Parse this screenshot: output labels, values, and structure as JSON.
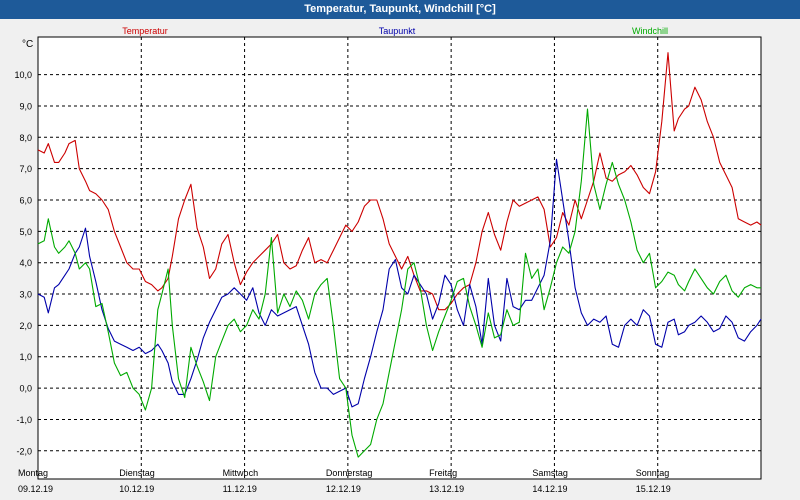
{
  "window": {
    "title": "Temperatur, Taupunkt, Windchill [°C]"
  },
  "chart_data": {
    "type": "line",
    "title": "Temperatur, Taupunkt, Windchill [°C]",
    "ylabel": "°C",
    "ylim": [
      -2.9,
      11.2
    ],
    "yticks": [
      -2.0,
      -1.0,
      0.0,
      1.0,
      2.0,
      3.0,
      4.0,
      5.0,
      6.0,
      7.0,
      8.0,
      9.0,
      10.0
    ],
    "ytick_labels": [
      "-2,0",
      "-1,0",
      "0,0",
      "1,0",
      "2,0",
      "3,0",
      "4,0",
      "5,0",
      "6,0",
      "7,0",
      "8,0",
      "9,0",
      "10,0"
    ],
    "xlim": [
      0,
      7
    ],
    "days": [
      {
        "weekday": "Montag",
        "date": "09.12.19"
      },
      {
        "weekday": "Dienstag",
        "date": "10.12.19"
      },
      {
        "weekday": "Mittwoch",
        "date": "11.12.19"
      },
      {
        "weekday": "Donnerstag",
        "date": "12.12.19"
      },
      {
        "weekday": "Freitag",
        "date": "13.12.19"
      },
      {
        "weekday": "Samstag",
        "date": "14.12.19"
      },
      {
        "weekday": "Sonntag",
        "date": "15.12.19"
      }
    ],
    "grid": true,
    "colors": {
      "axis": "#000000",
      "grid": "#000000",
      "background": "#ffffff"
    },
    "series": [
      {
        "name": "Temperatur",
        "color": "#cc0000",
        "x": [
          0.0,
          0.06,
          0.1,
          0.16,
          0.2,
          0.26,
          0.3,
          0.36,
          0.4,
          0.46,
          0.5,
          0.56,
          0.62,
          0.68,
          0.74,
          0.8,
          0.86,
          0.92,
          0.98,
          1.04,
          1.1,
          1.16,
          1.2,
          1.26,
          1.3,
          1.36,
          1.42,
          1.48,
          1.54,
          1.6,
          1.66,
          1.72,
          1.78,
          1.84,
          1.9,
          1.96,
          2.02,
          2.08,
          2.14,
          2.2,
          2.26,
          2.32,
          2.38,
          2.44,
          2.5,
          2.56,
          2.62,
          2.68,
          2.74,
          2.8,
          2.86,
          2.92,
          2.98,
          3.04,
          3.1,
          3.16,
          3.22,
          3.28,
          3.34,
          3.4,
          3.46,
          3.52,
          3.58,
          3.64,
          3.7,
          3.76,
          3.82,
          3.88,
          3.94,
          4.0,
          4.06,
          4.12,
          4.18,
          4.24,
          4.3,
          4.36,
          4.42,
          4.48,
          4.54,
          4.6,
          4.66,
          4.72,
          4.78,
          4.84,
          4.9,
          4.96,
          5.02,
          5.08,
          5.14,
          5.2,
          5.26,
          5.32,
          5.38,
          5.44,
          5.5,
          5.56,
          5.62,
          5.68,
          5.74,
          5.8,
          5.86,
          5.92,
          5.98,
          6.04,
          6.1,
          6.16,
          6.2,
          6.26,
          6.3,
          6.36,
          6.42,
          6.48,
          6.54,
          6.6,
          6.66,
          6.72,
          6.78,
          6.84,
          6.9,
          6.96,
          7.0
        ],
        "values": [
          7.6,
          7.5,
          7.8,
          7.2,
          7.2,
          7.5,
          7.8,
          7.9,
          7.0,
          6.6,
          6.3,
          6.2,
          6.0,
          5.7,
          5.0,
          4.5,
          4.0,
          3.8,
          3.8,
          3.4,
          3.3,
          3.1,
          3.2,
          3.5,
          4.2,
          5.4,
          6.0,
          6.5,
          5.1,
          4.5,
          3.5,
          3.8,
          4.6,
          4.9,
          4.0,
          3.3,
          3.7,
          4.0,
          4.2,
          4.4,
          4.6,
          4.9,
          4.0,
          3.8,
          3.9,
          4.4,
          4.8,
          4.0,
          4.1,
          4.0,
          4.4,
          4.8,
          5.2,
          5.0,
          5.3,
          5.8,
          6.0,
          6.0,
          5.4,
          4.6,
          4.2,
          3.8,
          4.2,
          3.6,
          3.1,
          3.1,
          3.0,
          2.5,
          2.5,
          2.7,
          3.0,
          3.2,
          3.3,
          4.0,
          5.0,
          5.6,
          4.9,
          4.4,
          5.3,
          6.0,
          5.8,
          5.9,
          6.0,
          6.1,
          5.7,
          4.5,
          4.8,
          5.6,
          5.2,
          6.0,
          5.4,
          6.0,
          6.6,
          7.5,
          6.7,
          6.6,
          6.8,
          6.9,
          7.1,
          6.8,
          6.4,
          6.2,
          6.9,
          8.5,
          10.7,
          8.2,
          8.6,
          8.9,
          9.0,
          9.6,
          9.2,
          8.5,
          8.0,
          7.2,
          6.8,
          6.4,
          5.4,
          5.3,
          5.2,
          5.3,
          5.2
        ]
      },
      {
        "name": "Taupunkt",
        "color": "#0000aa",
        "x": [
          0.0,
          0.06,
          0.1,
          0.16,
          0.2,
          0.26,
          0.3,
          0.36,
          0.4,
          0.46,
          0.5,
          0.56,
          0.62,
          0.68,
          0.74,
          0.8,
          0.86,
          0.92,
          0.98,
          1.04,
          1.1,
          1.16,
          1.2,
          1.26,
          1.3,
          1.36,
          1.42,
          1.48,
          1.54,
          1.6,
          1.66,
          1.72,
          1.78,
          1.84,
          1.9,
          1.96,
          2.02,
          2.08,
          2.14,
          2.2,
          2.26,
          2.32,
          2.38,
          2.44,
          2.5,
          2.56,
          2.62,
          2.68,
          2.74,
          2.8,
          2.86,
          2.92,
          2.98,
          3.04,
          3.1,
          3.16,
          3.22,
          3.28,
          3.34,
          3.4,
          3.46,
          3.52,
          3.58,
          3.64,
          3.7,
          3.76,
          3.82,
          3.88,
          3.94,
          4.0,
          4.06,
          4.12,
          4.18,
          4.24,
          4.3,
          4.36,
          4.42,
          4.48,
          4.54,
          4.6,
          4.66,
          4.72,
          4.78,
          4.84,
          4.9,
          4.96,
          5.02,
          5.08,
          5.14,
          5.2,
          5.26,
          5.32,
          5.38,
          5.44,
          5.5,
          5.56,
          5.62,
          5.68,
          5.74,
          5.8,
          5.86,
          5.92,
          5.98,
          6.04,
          6.1,
          6.16,
          6.2,
          6.26,
          6.3,
          6.36,
          6.42,
          6.48,
          6.54,
          6.6,
          6.66,
          6.72,
          6.78,
          6.84,
          6.9,
          6.96,
          7.0
        ],
        "values": [
          3.0,
          2.9,
          2.4,
          3.2,
          3.3,
          3.6,
          3.8,
          4.3,
          4.5,
          5.1,
          4.2,
          3.4,
          2.5,
          1.9,
          1.5,
          1.4,
          1.3,
          1.2,
          1.3,
          1.1,
          1.2,
          1.4,
          1.2,
          0.8,
          0.2,
          -0.2,
          -0.2,
          0.3,
          0.9,
          1.6,
          2.1,
          2.5,
          2.9,
          3.0,
          3.2,
          3.0,
          2.8,
          3.2,
          2.4,
          2.0,
          2.5,
          2.3,
          2.4,
          2.5,
          2.6,
          2.0,
          1.4,
          0.5,
          0.0,
          0.0,
          -0.2,
          -0.1,
          0.0,
          -0.6,
          -0.5,
          0.3,
          1.0,
          1.8,
          2.5,
          3.8,
          4.1,
          3.2,
          3.0,
          3.6,
          3.3,
          3.0,
          2.2,
          2.7,
          3.6,
          3.3,
          2.5,
          2.0,
          3.3,
          2.6,
          1.4,
          3.5,
          2.0,
          1.5,
          3.5,
          2.6,
          2.5,
          2.8,
          2.8,
          3.2,
          3.6,
          4.7,
          7.3,
          6.0,
          4.7,
          3.2,
          2.4,
          2.0,
          2.2,
          2.1,
          2.3,
          1.4,
          1.3,
          2.0,
          2.2,
          2.0,
          2.5,
          2.3,
          1.4,
          1.3,
          2.1,
          2.2,
          1.7,
          1.8,
          2.0,
          2.1,
          2.3,
          2.1,
          1.8,
          1.9,
          2.3,
          2.1,
          1.6,
          1.5,
          1.8,
          2.0,
          2.2
        ]
      },
      {
        "name": "Windchill",
        "color": "#00aa00",
        "x": [
          0.0,
          0.06,
          0.1,
          0.16,
          0.2,
          0.26,
          0.3,
          0.36,
          0.4,
          0.46,
          0.5,
          0.56,
          0.62,
          0.68,
          0.74,
          0.8,
          0.86,
          0.92,
          0.98,
          1.04,
          1.1,
          1.16,
          1.2,
          1.26,
          1.3,
          1.36,
          1.42,
          1.48,
          1.54,
          1.6,
          1.66,
          1.72,
          1.78,
          1.84,
          1.9,
          1.96,
          2.02,
          2.08,
          2.14,
          2.2,
          2.26,
          2.32,
          2.38,
          2.44,
          2.5,
          2.56,
          2.62,
          2.68,
          2.74,
          2.8,
          2.86,
          2.92,
          2.98,
          3.04,
          3.1,
          3.16,
          3.22,
          3.28,
          3.34,
          3.4,
          3.46,
          3.52,
          3.58,
          3.64,
          3.7,
          3.76,
          3.82,
          3.88,
          3.94,
          4.0,
          4.06,
          4.12,
          4.18,
          4.24,
          4.3,
          4.36,
          4.42,
          4.48,
          4.54,
          4.6,
          4.66,
          4.72,
          4.78,
          4.84,
          4.9,
          4.96,
          5.02,
          5.08,
          5.14,
          5.2,
          5.26,
          5.32,
          5.38,
          5.44,
          5.5,
          5.56,
          5.62,
          5.68,
          5.74,
          5.8,
          5.86,
          5.92,
          5.98,
          6.04,
          6.1,
          6.16,
          6.2,
          6.26,
          6.3,
          6.36,
          6.42,
          6.48,
          6.54,
          6.6,
          6.66,
          6.72,
          6.78,
          6.84,
          6.9,
          6.96,
          7.0
        ],
        "values": [
          4.6,
          4.7,
          5.4,
          4.5,
          4.3,
          4.5,
          4.7,
          4.3,
          3.8,
          4.0,
          3.8,
          2.6,
          2.7,
          1.8,
          0.8,
          0.4,
          0.5,
          0.0,
          -0.2,
          -0.7,
          0.0,
          2.5,
          3.0,
          3.8,
          2.0,
          0.3,
          -0.3,
          1.3,
          0.7,
          0.2,
          -0.4,
          1.0,
          1.5,
          2.0,
          2.2,
          1.8,
          2.0,
          2.5,
          2.2,
          3.0,
          4.8,
          2.4,
          3.0,
          2.6,
          3.1,
          2.8,
          2.2,
          3.0,
          3.3,
          3.5,
          2.0,
          0.3,
          0.0,
          -1.5,
          -2.2,
          -2.0,
          -1.8,
          -1.0,
          -0.5,
          0.5,
          1.5,
          2.5,
          3.8,
          4.0,
          3.2,
          2.0,
          1.2,
          1.8,
          2.3,
          2.8,
          3.4,
          3.5,
          2.6,
          2.0,
          1.3,
          2.4,
          1.6,
          1.7,
          2.5,
          2.0,
          2.1,
          4.3,
          3.5,
          3.8,
          2.5,
          3.2,
          4.0,
          4.5,
          4.3,
          5.0,
          6.6,
          8.9,
          6.5,
          5.7,
          6.5,
          7.2,
          6.5,
          6.0,
          5.3,
          4.4,
          4.0,
          4.3,
          3.2,
          3.4,
          3.7,
          3.6,
          3.3,
          3.1,
          3.4,
          3.8,
          3.5,
          3.2,
          3.0,
          3.4,
          3.6,
          3.1,
          2.9,
          3.2,
          3.3,
          3.2,
          3.2
        ]
      }
    ]
  }
}
